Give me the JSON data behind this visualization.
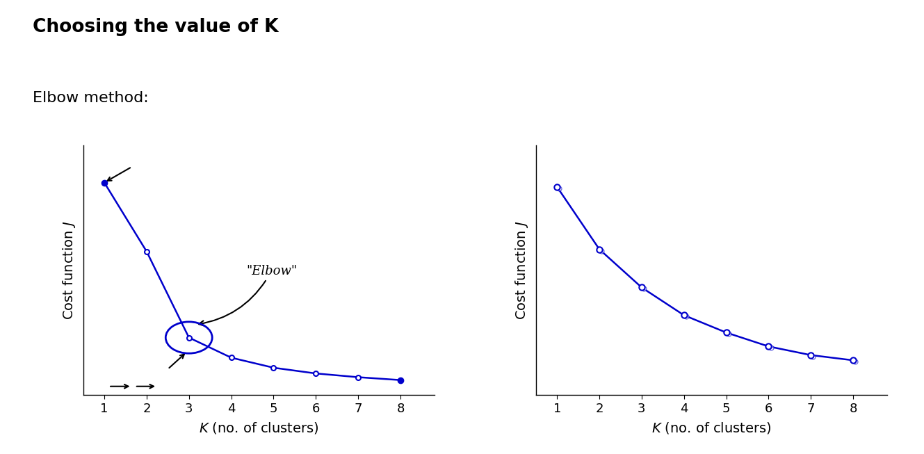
{
  "title": "Choosing the value of K",
  "subtitle": "Elbow method:",
  "title_fontsize": 19,
  "subtitle_fontsize": 16,
  "line_color": "#0000CC",
  "background_color": "#ffffff",
  "left_chart": {
    "x": [
      1,
      2,
      3,
      4,
      5,
      6,
      7,
      8
    ],
    "y": [
      9.2,
      6.8,
      3.8,
      3.1,
      2.75,
      2.55,
      2.42,
      2.32
    ],
    "xlabel": "K (no. of clusters)",
    "ylabel": "Cost function J",
    "xlim": [
      0.5,
      8.8
    ],
    "ylim": [
      1.8,
      10.5
    ]
  },
  "right_chart": {
    "x": [
      1,
      2,
      3,
      4,
      5,
      6,
      7,
      8
    ],
    "y": [
      8.8,
      7.0,
      5.9,
      5.1,
      4.6,
      4.2,
      3.95,
      3.8
    ],
    "xlabel": "K (no. of clusters)",
    "ylabel": "Cost function J",
    "xlim": [
      0.5,
      8.8
    ],
    "ylim": [
      2.8,
      10.0
    ]
  }
}
